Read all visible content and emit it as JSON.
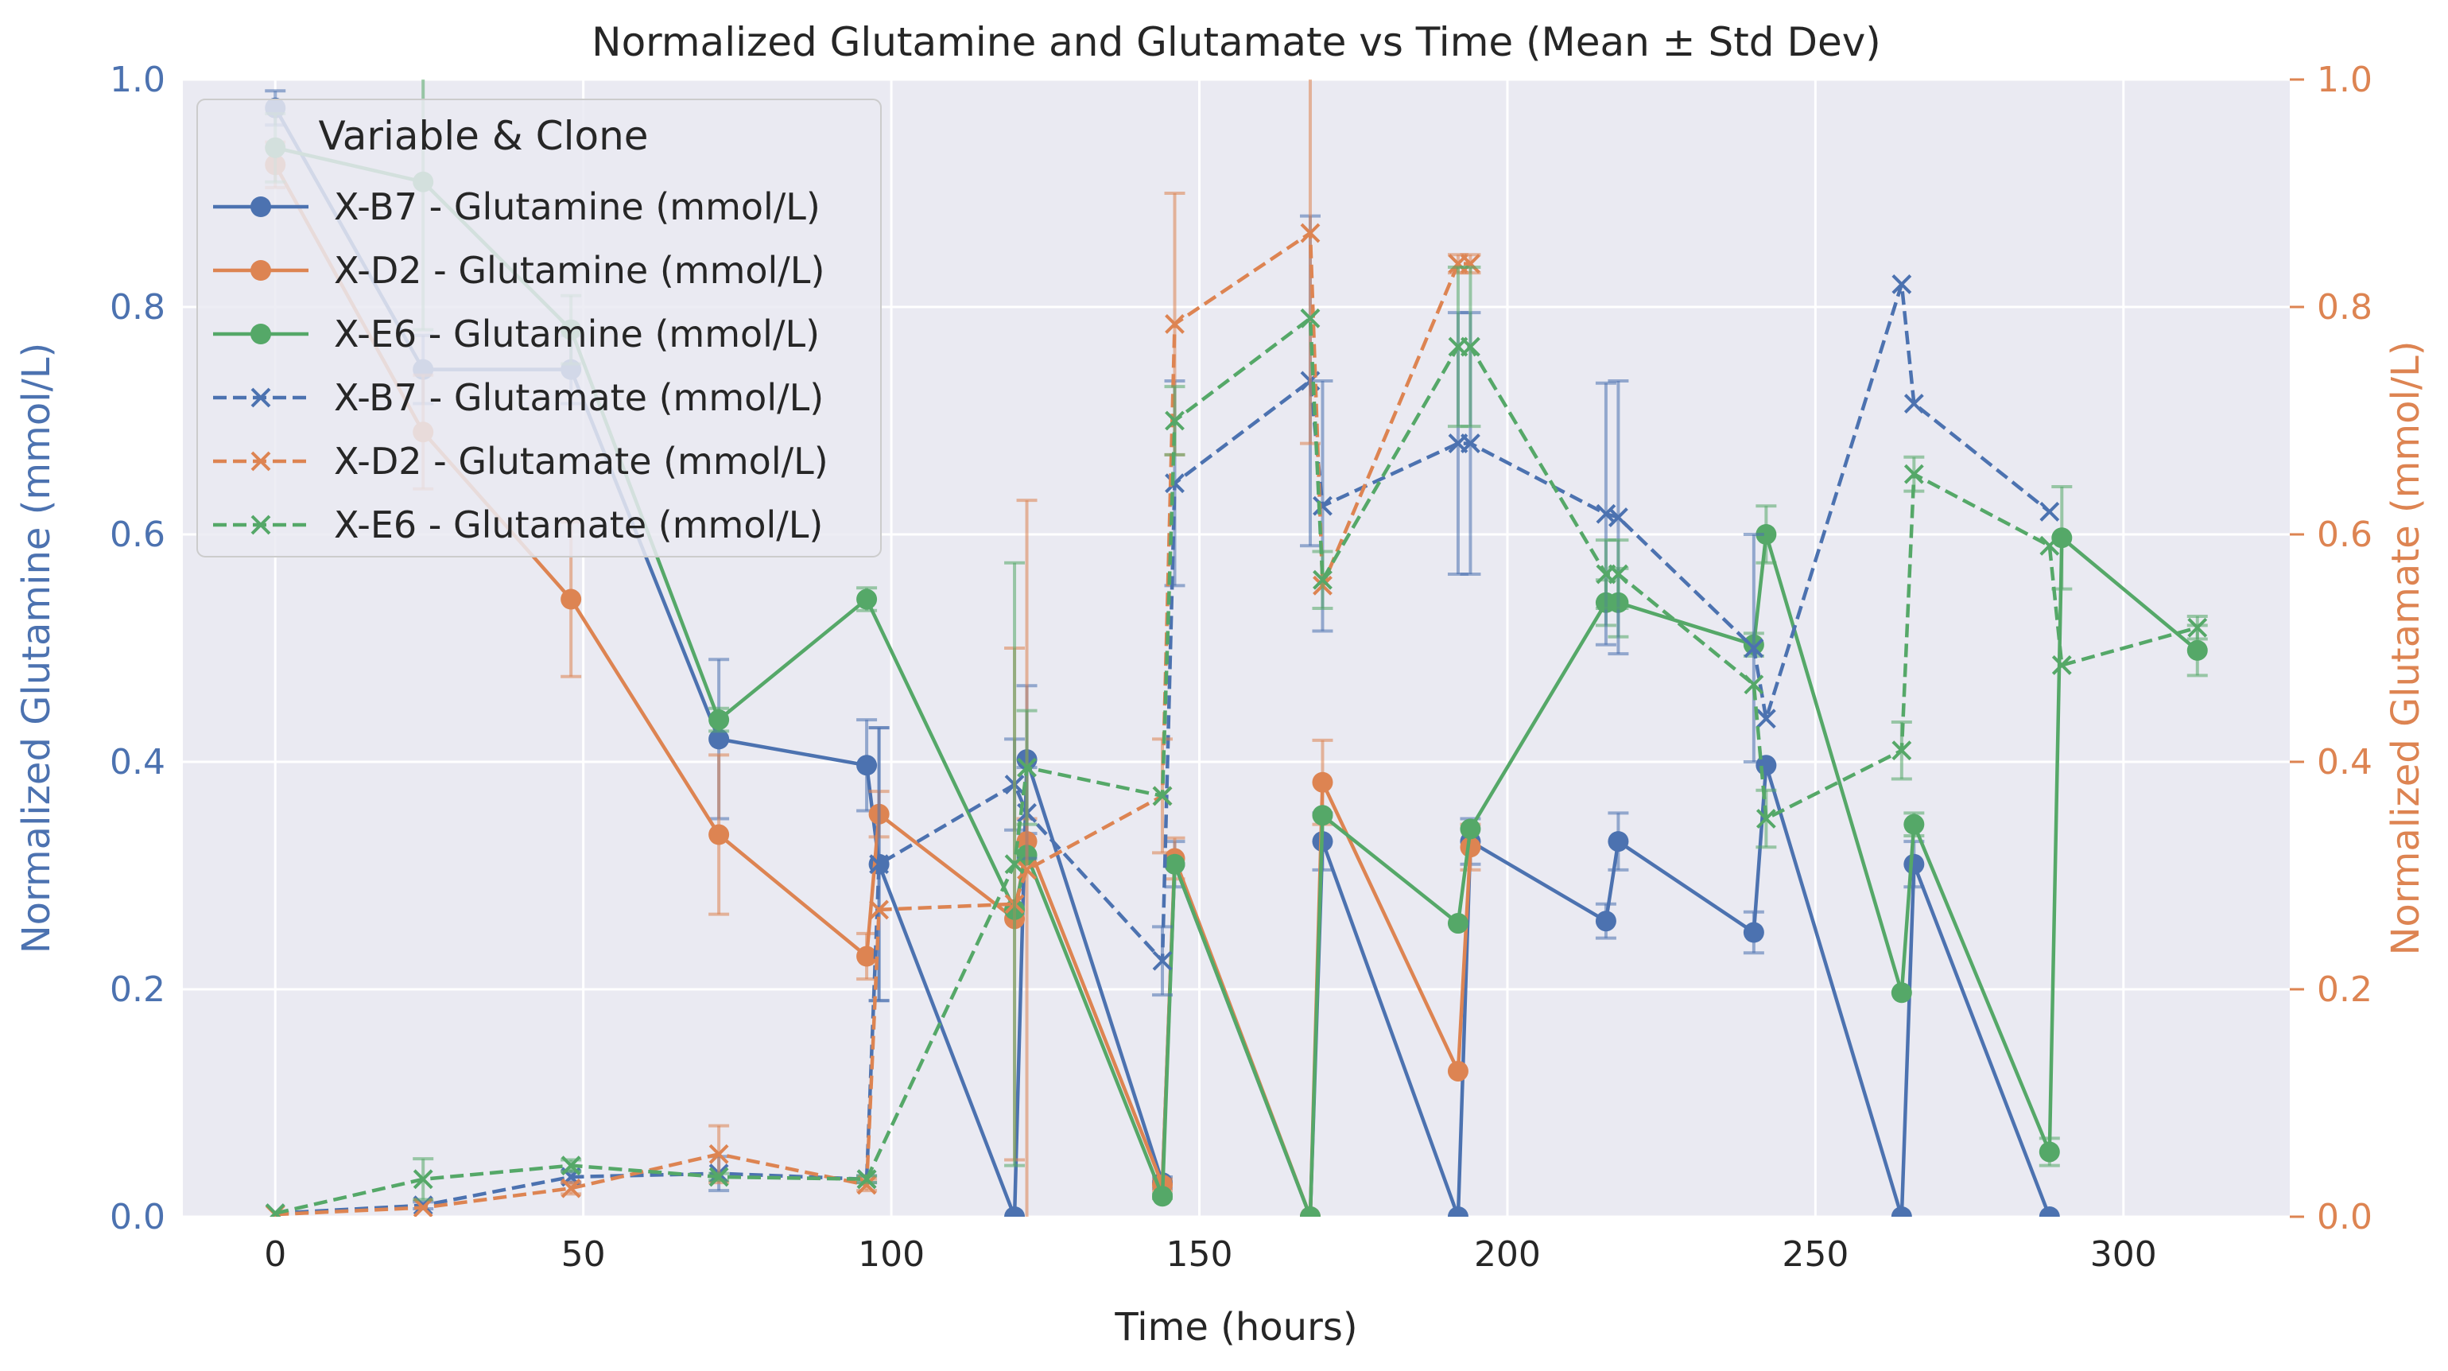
{
  "chart_data": {
    "type": "line",
    "title": "Normalized Glutamine and Glutamate vs Time (Mean ± Std Dev)",
    "xlabel": "Time (hours)",
    "ylabel_left": "Normalized Glutamine (mmol/L)",
    "ylabel_right": "Normalized Glutamate (mmol/L)",
    "xlim": [
      -15,
      327
    ],
    "ylim": [
      0,
      1
    ],
    "x_ticks": [
      0,
      50,
      100,
      150,
      200,
      250,
      300
    ],
    "y_ticks": [
      0.0,
      0.2,
      0.4,
      0.6,
      0.8,
      1.0
    ],
    "grid": true,
    "legend": {
      "title": "Variable & Clone",
      "placement": "top-left"
    },
    "colors": {
      "left_axis": "#4c72b0",
      "right_axis": "#dd8452",
      "plot_bg": "#eaeaf2"
    },
    "series": [
      {
        "name": "X-B7 - Glutamine (mmol/L)",
        "axis": "left",
        "color": "#4c72b0",
        "linestyle": "solid",
        "marker": "circle",
        "x": [
          0,
          24,
          48,
          72,
          96,
          98,
          120,
          122,
          144,
          146,
          168,
          170,
          192,
          194,
          216,
          218,
          240,
          242,
          264,
          266,
          288
        ],
        "y": [
          0.975,
          0.745,
          0.745,
          0.42,
          0.397,
          0.31,
          0.0,
          0.402,
          0.03,
          0.31,
          0.0,
          0.33,
          0.0,
          0.33,
          0.26,
          0.33,
          0.25,
          0.397,
          0.0,
          0.31,
          0.0
        ],
        "err": [
          0.015,
          0.03,
          0.03,
          0.07,
          0.04,
          0.12,
          0.0,
          0.065,
          0.005,
          0.02,
          0.0,
          0.025,
          0.0,
          0.02,
          0.015,
          0.025,
          0.018,
          0.0,
          0.0,
          0.02,
          0.0
        ]
      },
      {
        "name": "X-D2 - Glutamine (mmol/L)",
        "axis": "left",
        "color": "#dd8452",
        "linestyle": "solid",
        "marker": "circle",
        "x": [
          0,
          24,
          48,
          72,
          96,
          98,
          120,
          122,
          144,
          146,
          168,
          170,
          192,
          194
        ],
        "y": [
          0.925,
          0.69,
          0.543,
          0.336,
          0.229,
          0.354,
          0.262,
          0.33,
          0.028,
          0.315,
          0.0,
          0.382,
          0.128,
          0.325
        ],
        "err": [
          0.02,
          0.05,
          0.068,
          0.07,
          0.02,
          0.02,
          0.0,
          0.02,
          0.005,
          0.018,
          0.0,
          0.037,
          0.0,
          0.02
        ]
      },
      {
        "name": "X-E6 - Glutamine (mmol/L)",
        "axis": "left",
        "color": "#55a868",
        "linestyle": "solid",
        "marker": "circle",
        "x": [
          0,
          24,
          48,
          72,
          96,
          120,
          122,
          144,
          146,
          168,
          170,
          192,
          194,
          216,
          218,
          240,
          242,
          264,
          266,
          288,
          290,
          312
        ],
        "y": [
          0.94,
          0.91,
          0.78,
          0.437,
          0.543,
          0.27,
          0.318,
          0.018,
          0.31,
          0.0,
          0.353,
          0.258,
          0.341,
          0.54,
          0.54,
          0.503,
          0.6,
          0.197,
          0.345,
          0.057,
          0.597,
          0.498
        ],
        "err": [
          0.03,
          0.13,
          0.03,
          0.01,
          0.01,
          0.0,
          0.0,
          0.002,
          0.0,
          0.0,
          0.0,
          0.0,
          0.0,
          0.02,
          0.03,
          0.01,
          0.025,
          0.0,
          0.01,
          0.012,
          0.045,
          0.022
        ]
      },
      {
        "name": "X-B7 - Glutamate (mmol/L)",
        "axis": "right",
        "color": "#4c72b0",
        "linestyle": "dashed",
        "marker": "x",
        "x": [
          0,
          24,
          48,
          72,
          96,
          98,
          120,
          122,
          144,
          146,
          168,
          170,
          192,
          194,
          216,
          218,
          240,
          242,
          264,
          266,
          288
        ],
        "y": [
          0.003,
          0.01,
          0.035,
          0.038,
          0.033,
          0.31,
          0.38,
          0.355,
          0.225,
          0.645,
          0.735,
          0.625,
          0.68,
          0.68,
          0.618,
          0.615,
          0.5,
          0.438,
          0.82,
          0.715,
          0.62
        ],
        "err": [
          0.0,
          0.003,
          0.005,
          0.015,
          0.003,
          0.12,
          0.04,
          0.04,
          0.03,
          0.09,
          0.145,
          0.11,
          0.115,
          0.115,
          0.115,
          0.12,
          0.1,
          0.0,
          0.0,
          0.0,
          0.0
        ]
      },
      {
        "name": "X-D2 - Glutamate (mmol/L)",
        "axis": "right",
        "color": "#dd8452",
        "linestyle": "dashed",
        "marker": "x",
        "x": [
          0,
          24,
          48,
          72,
          96,
          98,
          120,
          122,
          144,
          146,
          168,
          170,
          192,
          194
        ],
        "y": [
          0.002,
          0.008,
          0.025,
          0.055,
          0.028,
          0.27,
          0.275,
          0.305,
          0.37,
          0.785,
          0.865,
          0.555,
          0.838,
          0.838
        ],
        "err": [
          0.0,
          0.0,
          0.005,
          0.025,
          0.005,
          0.0,
          0.225,
          0.325,
          0.05,
          0.115,
          0.185,
          0.0,
          0.008,
          0.008
        ]
      },
      {
        "name": "X-E6 - Glutamate (mmol/L)",
        "axis": "right",
        "color": "#55a868",
        "linestyle": "dashed",
        "marker": "x",
        "x": [
          0,
          24,
          48,
          72,
          96,
          120,
          122,
          144,
          146,
          168,
          170,
          192,
          194,
          216,
          218,
          240,
          242,
          264,
          266,
          288,
          290,
          312
        ],
        "y": [
          0.003,
          0.033,
          0.045,
          0.035,
          0.033,
          0.31,
          0.395,
          0.37,
          0.7,
          0.79,
          0.56,
          0.765,
          0.765,
          0.565,
          0.565,
          0.468,
          0.35,
          0.41,
          0.653,
          0.59,
          0.485,
          0.518
        ],
        "err": [
          0.0,
          0.018,
          0.005,
          0.003,
          0.003,
          0.265,
          0.05,
          0.0,
          0.03,
          0.0,
          0.025,
          0.07,
          0.07,
          0.03,
          0.03,
          0.0,
          0.025,
          0.025,
          0.015,
          0.0,
          0.0,
          0.01
        ]
      }
    ]
  }
}
